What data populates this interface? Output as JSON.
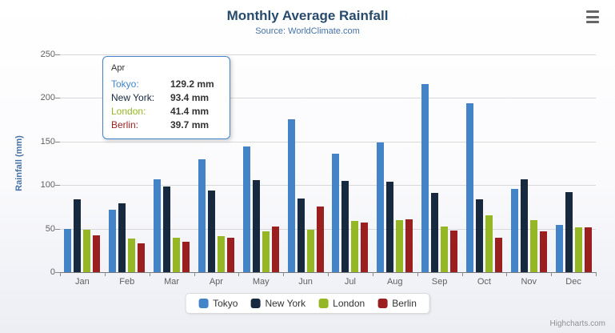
{
  "chart": {
    "title": "Monthly Average Rainfall",
    "subtitle": "Source: WorldClimate.com",
    "y_axis_title": "Rainfall (mm)",
    "credits": "Highcharts.com",
    "menu_icon": "hamburger"
  },
  "chart_data": {
    "type": "bar",
    "title": "Monthly Average Rainfall",
    "subtitle": "Source: WorldClimate.com",
    "xlabel": "",
    "ylabel": "Rainfall (mm)",
    "ylim": [
      0,
      250
    ],
    "yticks": [
      0,
      50,
      100,
      150,
      200,
      250
    ],
    "grid": true,
    "legend_position": "bottom",
    "categories": [
      "Jan",
      "Feb",
      "Mar",
      "Apr",
      "May",
      "Jun",
      "Jul",
      "Aug",
      "Sep",
      "Oct",
      "Nov",
      "Dec"
    ],
    "series": [
      {
        "name": "Tokyo",
        "color": "#4284c7",
        "values": [
          49.9,
          71.5,
          106.4,
          129.2,
          144.0,
          176.0,
          135.6,
          148.5,
          216.4,
          194.1,
          95.6,
          54.4
        ]
      },
      {
        "name": "New York",
        "color": "#16293f",
        "values": [
          83.6,
          78.8,
          98.5,
          93.4,
          106.0,
          84.5,
          105.0,
          104.3,
          91.2,
          83.5,
          106.6,
          92.3
        ]
      },
      {
        "name": "London",
        "color": "#95b723",
        "values": [
          48.9,
          38.8,
          39.3,
          41.4,
          47.0,
          48.3,
          59.0,
          59.6,
          52.4,
          65.2,
          59.3,
          51.2
        ]
      },
      {
        "name": "Berlin",
        "color": "#9c1f1f",
        "values": [
          42.4,
          33.2,
          34.5,
          39.7,
          52.6,
          75.5,
          57.4,
          60.4,
          47.6,
          39.1,
          46.8,
          51.1
        ]
      }
    ]
  },
  "tooltip": {
    "category": "Apr",
    "rows": [
      {
        "name": "Tokyo:",
        "value": "129.2 mm",
        "color": "#4284c7"
      },
      {
        "name": "New York:",
        "value": "93.4 mm",
        "color": "#16293f"
      },
      {
        "name": "London:",
        "value": "41.4 mm",
        "color": "#95b723"
      },
      {
        "name": "Berlin:",
        "value": "39.7 mm",
        "color": "#9c1f1f"
      }
    ]
  },
  "colors": {
    "title": "#274b6d",
    "subtitle": "#4572a7",
    "axis_label": "#606060",
    "gridline": "#d8d8d8",
    "tooltip_border": "#4284c7"
  }
}
